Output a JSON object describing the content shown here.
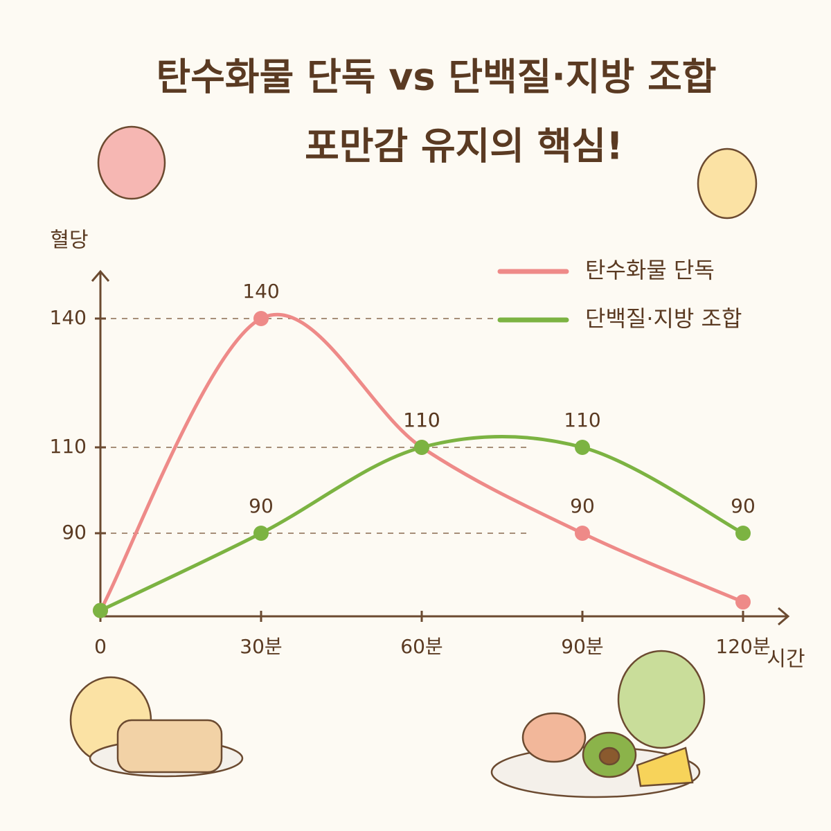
{
  "chart_data": {
    "type": "line",
    "title": "탄수화물 단독 vs 단백질·지방 조합",
    "subtitle": "포만감 유지의 핵심!",
    "y_label": "혈당",
    "x_label": "시간",
    "categories": [
      "0",
      "30분",
      "60분",
      "90분",
      "120분"
    ],
    "series": [
      {
        "name": "탄수화물 단독",
        "color": "#ee8a88",
        "values": [
          72,
          140,
          110,
          90,
          74
        ],
        "value_labels": [
          null,
          "140",
          "110",
          "90",
          null
        ]
      },
      {
        "name": "단백질·지방 조합",
        "color": "#7cb342",
        "values": [
          72,
          90,
          110,
          110,
          90
        ],
        "value_labels": [
          null,
          "90",
          "110",
          "110",
          "90"
        ]
      }
    ],
    "ylim": [
      70,
      150
    ],
    "yticks": [
      90,
      110,
      140
    ],
    "grid": true,
    "legend": "top-right"
  }
}
